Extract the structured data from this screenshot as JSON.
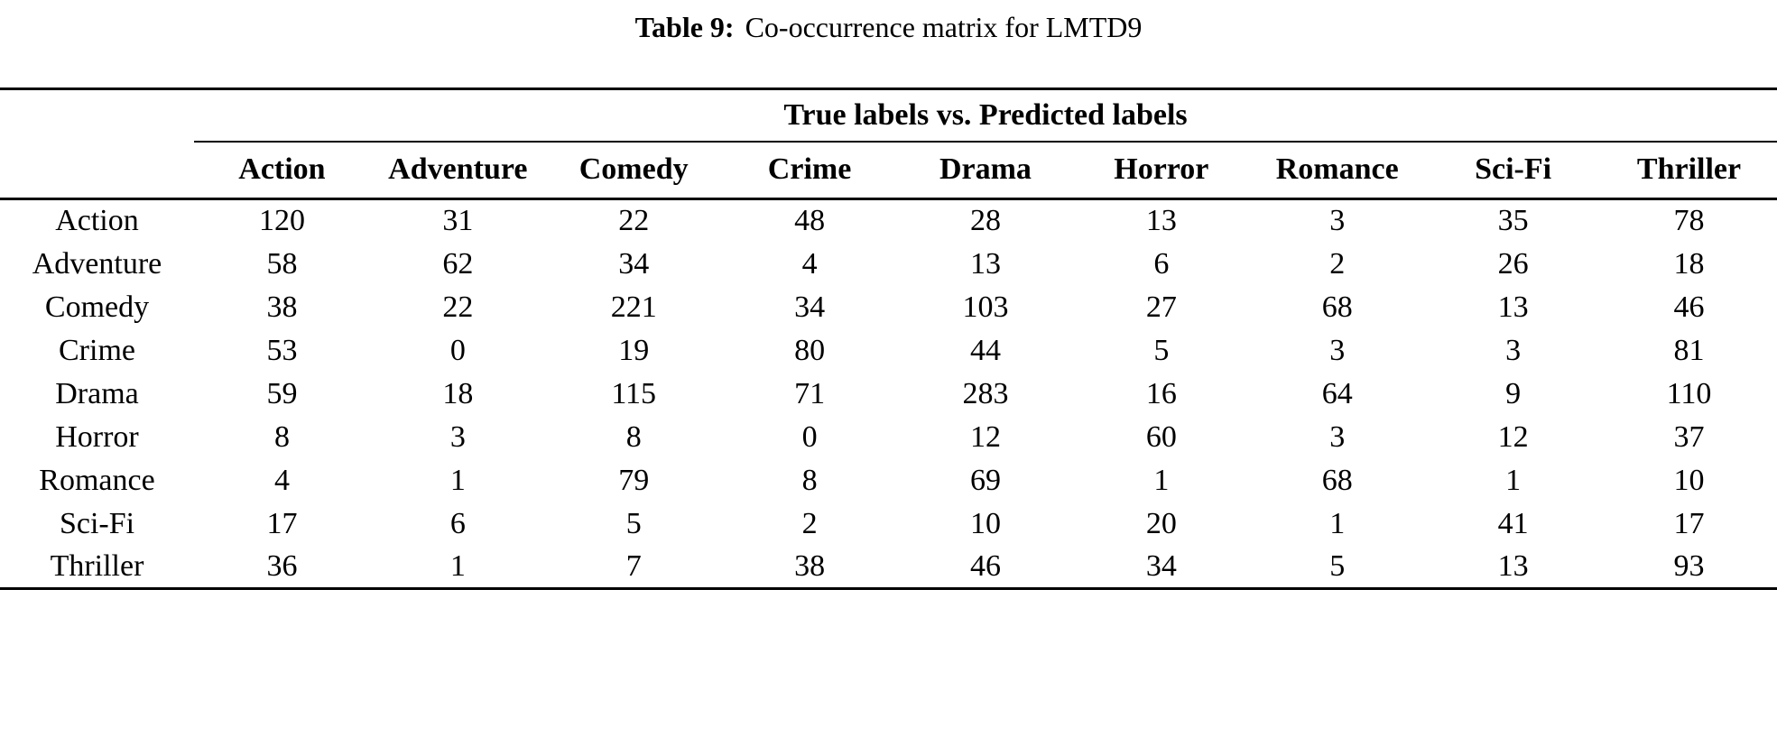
{
  "caption": {
    "label": "Table 9:",
    "text": "Co-occurrence matrix for LMTD9"
  },
  "table": {
    "group_header": "True labels vs. Predicted labels",
    "columns": [
      "Action",
      "Adventure",
      "Comedy",
      "Crime",
      "Drama",
      "Horror",
      "Romance",
      "Sci-Fi",
      "Thriller"
    ],
    "rows": [
      {
        "label": "Action",
        "values": [
          120,
          31,
          22,
          48,
          28,
          13,
          3,
          35,
          78
        ]
      },
      {
        "label": "Adventure",
        "values": [
          58,
          62,
          34,
          4,
          13,
          6,
          2,
          26,
          18
        ]
      },
      {
        "label": "Comedy",
        "values": [
          38,
          22,
          221,
          34,
          103,
          27,
          68,
          13,
          46
        ]
      },
      {
        "label": "Crime",
        "values": [
          53,
          0,
          19,
          80,
          44,
          5,
          3,
          3,
          81
        ]
      },
      {
        "label": "Drama",
        "values": [
          59,
          18,
          115,
          71,
          283,
          16,
          64,
          9,
          110
        ]
      },
      {
        "label": "Horror",
        "values": [
          8,
          3,
          8,
          0,
          12,
          60,
          3,
          12,
          37
        ]
      },
      {
        "label": "Romance",
        "values": [
          4,
          1,
          79,
          8,
          69,
          1,
          68,
          1,
          10
        ]
      },
      {
        "label": "Sci-Fi",
        "values": [
          17,
          6,
          5,
          2,
          10,
          20,
          1,
          41,
          17
        ]
      },
      {
        "label": "Thriller",
        "values": [
          36,
          1,
          7,
          38,
          46,
          34,
          5,
          13,
          93
        ]
      }
    ]
  }
}
